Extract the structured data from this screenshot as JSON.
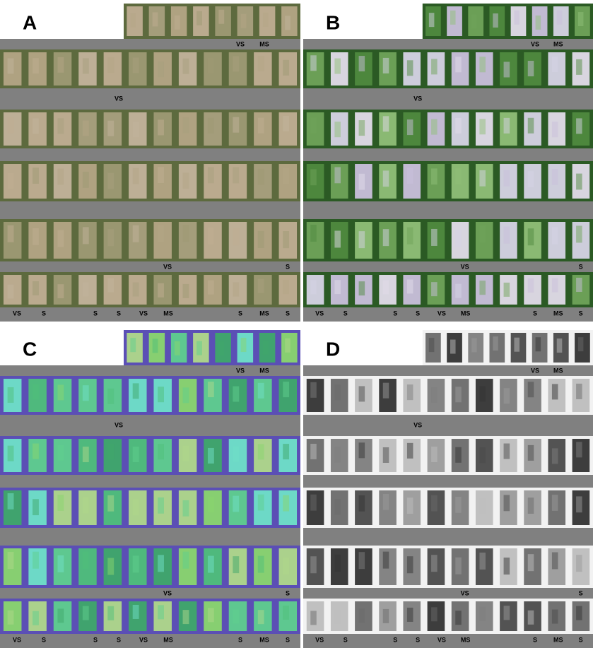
{
  "panels": [
    {
      "letter": "A",
      "top_labels": [
        "VS",
        "MS"
      ],
      "row1_labels": [
        "VS"
      ],
      "row4_labels": [
        "VS",
        "S"
      ],
      "bottom_labels": [
        "VS",
        "S",
        "S",
        "S",
        "VS",
        "MS",
        "S",
        "MS",
        "S"
      ]
    },
    {
      "letter": "B",
      "top_labels": [
        "VS",
        "MS"
      ],
      "row1_labels": [
        "VS"
      ],
      "row4_labels": [
        "VS",
        "S"
      ],
      "bottom_labels": [
        "VS",
        "S",
        "S",
        "S",
        "VS",
        "MS",
        "S",
        "MS",
        "S"
      ]
    },
    {
      "letter": "C",
      "top_labels": [
        "VS",
        "MS"
      ],
      "row1_labels": [
        "VS"
      ],
      "row4_labels": [
        "VS",
        "S"
      ],
      "bottom_labels": [
        "VS",
        "S",
        "S",
        "S",
        "VS",
        "MS",
        "S",
        "MS",
        "S"
      ]
    },
    {
      "letter": "D",
      "top_labels": [
        "VS",
        "MS"
      ],
      "row1_labels": [
        "VS"
      ],
      "row4_labels": [
        "VS",
        "S"
      ],
      "bottom_labels": [
        "VS",
        "S",
        "S",
        "S",
        "VS",
        "MS",
        "S",
        "MS",
        "S"
      ]
    }
  ]
}
